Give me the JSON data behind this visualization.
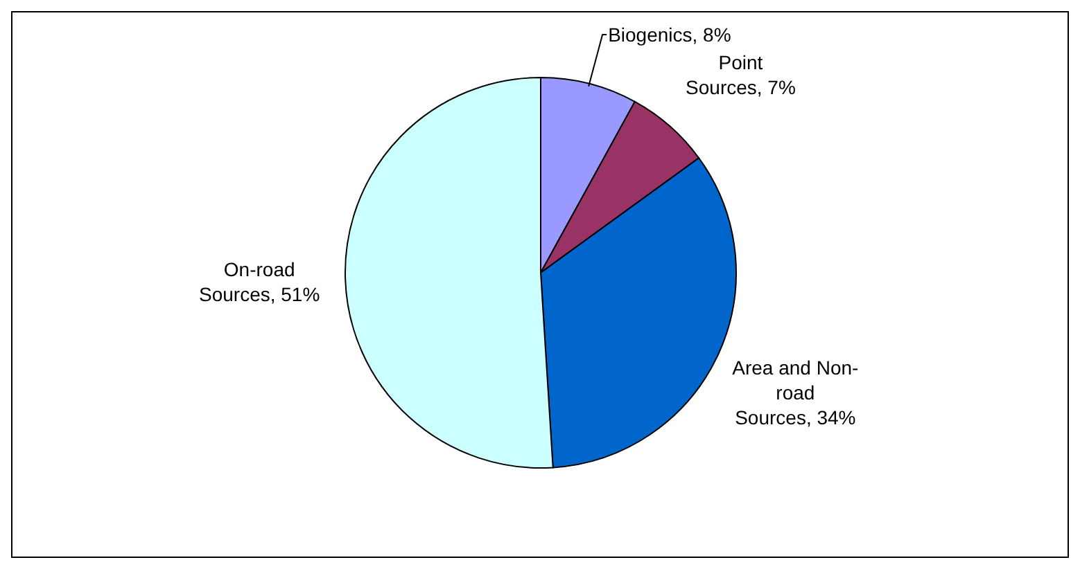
{
  "chart_data": {
    "type": "pie",
    "categories": [
      "Biogenics",
      "Point Sources",
      "Area and Non-road Sources",
      "On-road Sources"
    ],
    "values": [
      8,
      7,
      34,
      51
    ],
    "value_labels": [
      "8%",
      "7%",
      "34%",
      "51%"
    ],
    "colors": [
      "#9999ff",
      "#993366",
      "#0066cc",
      "#ccffff"
    ],
    "legend": false
  }
}
